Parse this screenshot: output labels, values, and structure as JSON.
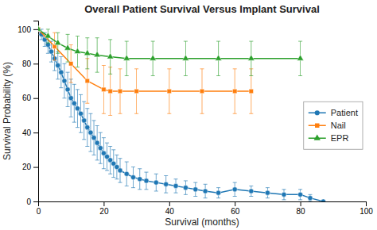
{
  "chart_data": {
    "type": "line",
    "title": "Overall Patient Survival Versus Implant Survival",
    "x_label": "Survival (months)",
    "y_label": "Survival Probability (%)",
    "xlim": [
      0,
      100
    ],
    "ylim": [
      0,
      105
    ],
    "xticks": [
      0,
      20,
      40,
      60,
      80,
      100
    ],
    "yticks": [
      0,
      20,
      40,
      60,
      80,
      100
    ],
    "grid": false,
    "legend": "right",
    "series": [
      {
        "name": "Patient",
        "marker": "circle",
        "x": [
          0,
          1,
          2,
          3,
          4,
          5,
          6,
          7,
          8,
          9,
          10,
          11,
          12,
          13,
          14,
          15,
          16,
          17,
          18,
          19,
          20,
          21,
          22,
          23,
          24,
          25,
          27,
          29,
          31,
          33,
          36,
          39,
          42,
          45,
          48,
          51,
          55,
          60,
          65,
          70,
          75,
          80,
          83,
          87
        ],
        "values": [
          100,
          97,
          94,
          91,
          87,
          83,
          79,
          75,
          70,
          65,
          60,
          57,
          54,
          51,
          47,
          43,
          40,
          37,
          34,
          31,
          28,
          26,
          24,
          22,
          20,
          18,
          16,
          14,
          13,
          12,
          11,
          10,
          9,
          8,
          7,
          6,
          5,
          7,
          6,
          5,
          4,
          4,
          2,
          0
        ],
        "error_minus": [
          0,
          3,
          4,
          5,
          6,
          7,
          8,
          9,
          10,
          10,
          11,
          11,
          11,
          11,
          11,
          11,
          11,
          10,
          10,
          9,
          9,
          8,
          8,
          8,
          7,
          7,
          7,
          6,
          6,
          5,
          5,
          5,
          4,
          4,
          4,
          4,
          3,
          4,
          3,
          3,
          3,
          3,
          2,
          0
        ],
        "error_plus": [
          0,
          3,
          4,
          5,
          6,
          7,
          8,
          9,
          10,
          10,
          11,
          11,
          11,
          11,
          11,
          11,
          11,
          10,
          10,
          9,
          9,
          8,
          8,
          8,
          7,
          7,
          7,
          6,
          6,
          5,
          5,
          5,
          4,
          4,
          4,
          4,
          3,
          4,
          3,
          3,
          3,
          3,
          2,
          0
        ]
      },
      {
        "name": "Nail",
        "marker": "square",
        "x": [
          0,
          5,
          10,
          15,
          20,
          22,
          25,
          30,
          40,
          50,
          60,
          65
        ],
        "values": [
          100,
          90,
          80,
          70,
          65,
          64,
          64,
          64,
          64,
          64,
          64,
          64
        ],
        "error_minus": [
          0,
          8,
          11,
          13,
          14,
          14,
          13,
          13,
          13,
          13,
          13,
          13
        ],
        "error_plus": [
          0,
          8,
          11,
          13,
          14,
          14,
          13,
          13,
          13,
          13,
          13,
          13
        ]
      },
      {
        "name": "EPR",
        "marker": "triangle",
        "x": [
          0,
          3,
          6,
          9,
          12,
          15,
          18,
          22,
          27,
          35,
          45,
          55,
          65,
          80
        ],
        "values": [
          100,
          96,
          92,
          89,
          87,
          86,
          85,
          84,
          83,
          83,
          83,
          83,
          83,
          83
        ],
        "error_minus": [
          0,
          4,
          6,
          8,
          9,
          9,
          10,
          10,
          10,
          10,
          10,
          10,
          10,
          10
        ],
        "error_plus": [
          0,
          4,
          6,
          8,
          9,
          9,
          10,
          10,
          10,
          10,
          10,
          10,
          10,
          10
        ]
      }
    ]
  }
}
